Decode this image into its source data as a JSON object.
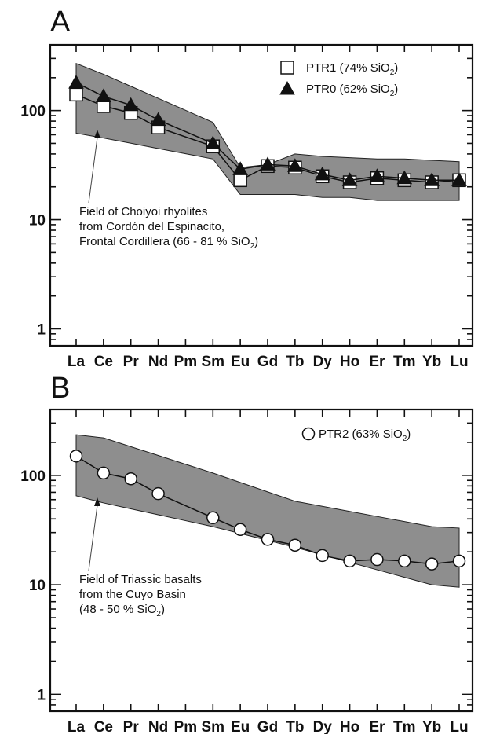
{
  "chart_data": [
    {
      "panel": "A",
      "type": "line",
      "yscale": "log",
      "ylim": [
        0.7,
        400
      ],
      "yticks": [
        1,
        10,
        100
      ],
      "ytick_labels": [
        "1",
        "10",
        "100"
      ],
      "categories": [
        "La",
        "Ce",
        "Pr",
        "Nd",
        "Pm",
        "Sm",
        "Eu",
        "Gd",
        "Tb",
        "Dy",
        "Ho",
        "Er",
        "Tm",
        "Yb",
        "Lu"
      ],
      "series": [
        {
          "name": "PTR1 (74% SiO",
          "name_sub": "2",
          "name_tail": ")",
          "marker": "square",
          "values": [
            140,
            110,
            95,
            70,
            null,
            47,
            23,
            31,
            30,
            25,
            22,
            24,
            23,
            22,
            23
          ]
        },
        {
          "name": "PTR0 (62% SiO",
          "name_sub": "2",
          "name_tail": ")",
          "marker": "triangle",
          "values": [
            180,
            135,
            112,
            82,
            null,
            50,
            29,
            32,
            31,
            26,
            23,
            25,
            24,
            23,
            23
          ]
        }
      ],
      "field": {
        "upper": [
          270,
          215,
          null,
          null,
          null,
          78,
          30,
          32,
          40,
          38,
          37,
          36,
          36,
          35,
          34
        ],
        "lower": [
          62,
          56,
          null,
          null,
          null,
          36,
          17,
          17,
          17,
          16,
          16,
          15,
          15,
          15,
          15
        ],
        "label_lines": [
          "Field of Choiyoi rhyolites",
          "from Cordón del Espinacito,",
          "Frontal Cordillera (66 - 81 % SiO"
        ],
        "label_sub": "2",
        "label_tail": ")"
      }
    },
    {
      "panel": "B",
      "type": "line",
      "yscale": "log",
      "ylim": [
        0.7,
        400
      ],
      "yticks": [
        1,
        10,
        100
      ],
      "ytick_labels": [
        "1",
        "10",
        "100"
      ],
      "categories": [
        "La",
        "Ce",
        "Pr",
        "Nd",
        "Pm",
        "Sm",
        "Eu",
        "Gd",
        "Tb",
        "Dy",
        "Ho",
        "Er",
        "Tm",
        "Yb",
        "Lu"
      ],
      "series": [
        {
          "name": "PTR2 (63% SiO",
          "name_sub": "2",
          "name_tail": ")",
          "marker": "circle",
          "values": [
            150,
            105,
            93,
            68,
            null,
            41,
            32,
            26,
            23,
            18.5,
            16.5,
            17,
            16.5,
            15.5,
            16.5
          ]
        }
      ],
      "field": {
        "upper": [
          235,
          220,
          null,
          null,
          null,
          105,
          null,
          null,
          58,
          null,
          null,
          null,
          null,
          34,
          33
        ],
        "lower": [
          65,
          56,
          null,
          null,
          null,
          34,
          null,
          null,
          22,
          null,
          null,
          null,
          null,
          10,
          9.5
        ],
        "label_lines": [
          "Field of Triassic basalts",
          "from the Cuyo Basin",
          "(48 - 50 % SiO"
        ],
        "label_sub": "2",
        "label_tail": ")"
      }
    }
  ],
  "colors": {
    "field_fill": "#8e8e8e",
    "line": "#111111",
    "marker_open": "#ffffff"
  }
}
